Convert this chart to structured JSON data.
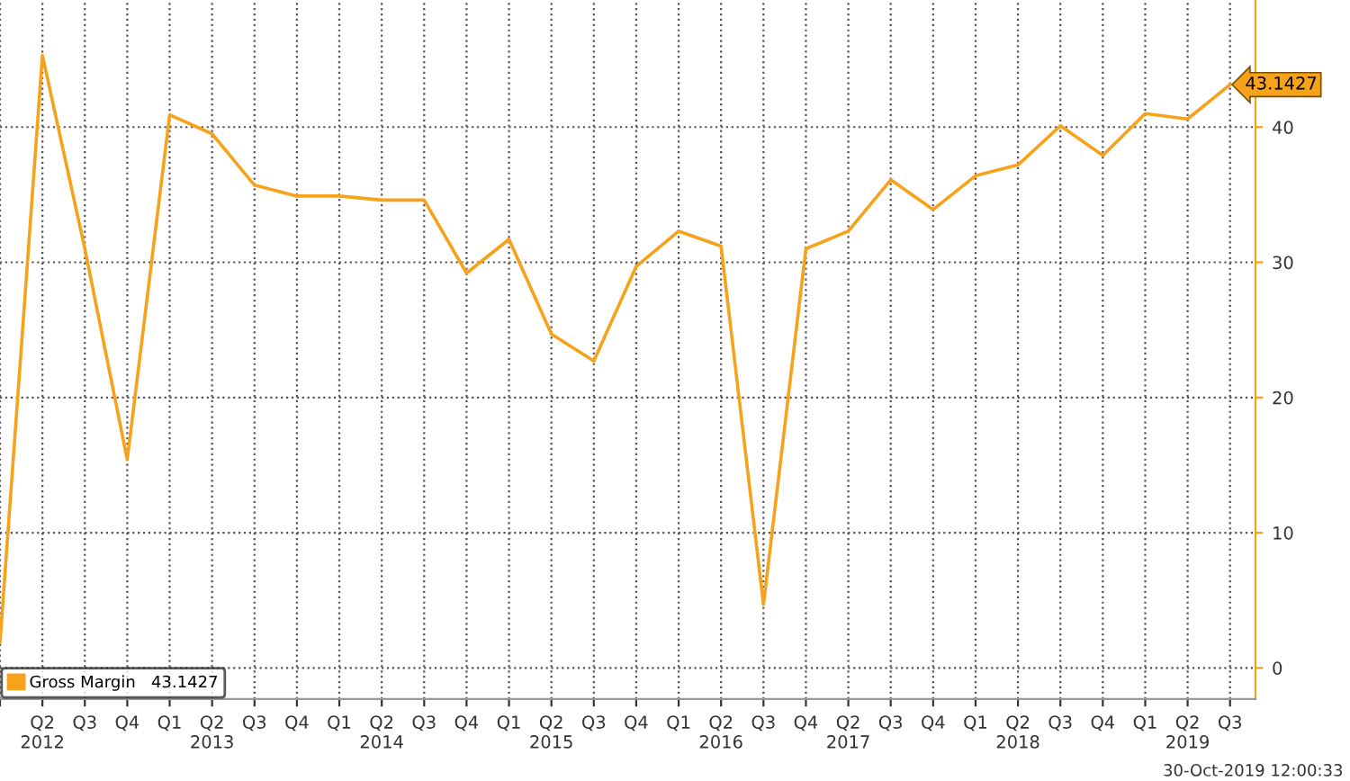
{
  "chart_data": {
    "type": "line",
    "categories": [
      null,
      "Q2\n2012",
      "Q3",
      "Q4",
      "Q1",
      "Q2\n2013",
      "Q3",
      "Q4",
      "Q1",
      "Q2\n2014",
      "Q3",
      "Q4",
      "Q1",
      "Q2\n2015",
      "Q3",
      "Q4",
      "Q1",
      "Q2\n2016",
      "Q3",
      "Q4",
      "Q2\n2017",
      "Q3",
      "Q4",
      "Q1",
      "Q2\n2018",
      "Q3",
      "Q4",
      "Q1",
      "Q2\n2019",
      "Q3"
    ],
    "series": [
      {
        "name": "Gross Margin",
        "color": "#f7a21b",
        "values": [
          1.9,
          45.3,
          31.0,
          15.4,
          40.9,
          39.5,
          35.7,
          34.9,
          34.9,
          34.6,
          34.6,
          29.2,
          31.7,
          24.7,
          22.7,
          29.7,
          32.3,
          31.2,
          4.7,
          31.0,
          32.3,
          36.1,
          33.9,
          36.4,
          37.2,
          40.1,
          37.9,
          41.0,
          40.6,
          43.1427
        ],
        "value_labels": [
          null,
          null,
          null,
          null,
          null,
          null,
          null,
          null,
          null,
          null,
          null,
          null,
          null,
          null,
          null,
          null,
          null,
          null,
          null,
          null,
          null,
          null,
          null,
          null,
          null,
          null,
          null,
          null,
          null,
          "43.1427"
        ]
      }
    ],
    "ylim": [
      -2.3,
      49.4
    ],
    "yticks": [
      0,
      10,
      20,
      30,
      40
    ],
    "grid": true,
    "legend": "bottom left",
    "marker": "none",
    "line_style": "solid",
    "annotations": [
      "30-Oct-2019 12:00:33"
    ]
  }
}
